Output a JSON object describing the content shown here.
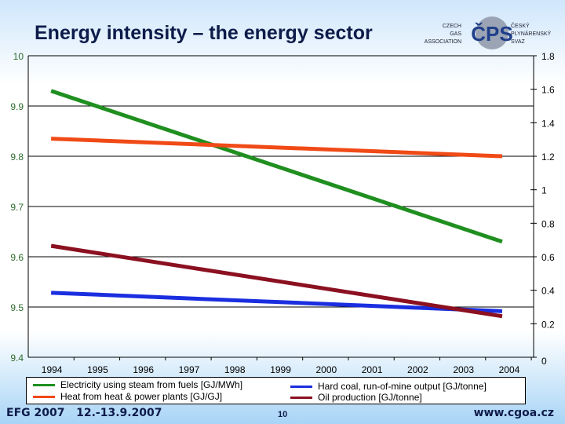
{
  "title": "Energy intensity – the energy sector",
  "logo": {
    "left_text": [
      "CZECH",
      "GAS",
      "ASSOCIATION"
    ],
    "mark": "ČPS",
    "right_text": [
      "ČESKÝ",
      "PLYNÁRENSKÝ",
      "SVAZ"
    ]
  },
  "footer": {
    "event": "EFG 2007",
    "date": "12.-13.9.2007",
    "page": "10",
    "url": "www.cgoa.cz"
  },
  "chart_data": {
    "type": "line",
    "title": "Energy intensity – the energy sector",
    "categories": [
      "1994",
      "1995",
      "1996",
      "1997",
      "1998",
      "1999",
      "2000",
      "2001",
      "2002",
      "2003",
      "2004"
    ],
    "y_left": {
      "range": [
        9.4,
        10
      ],
      "ticks": [
        "9.4",
        "9.5",
        "9.6",
        "9.7",
        "9.8",
        "9.9",
        "10"
      ]
    },
    "y_right": {
      "range": [
        0,
        1.8
      ],
      "ticks": [
        "0",
        "0.2",
        "0.4",
        "0.6",
        "0.8",
        "1",
        "1.2",
        "1.4",
        "1.6",
        "1.8"
      ]
    },
    "grid": true,
    "legend_position": "bottom",
    "series": [
      {
        "name": "Electricity using steam from fuels [GJ/MWh]",
        "axis": "left",
        "color": "#1f8f1f",
        "start": 9.93,
        "end": 9.63
      },
      {
        "name": "Heat from heat & power plants [GJ/GJ]",
        "axis": "right",
        "color": "#f04a16",
        "start": 1.305,
        "end": 1.2
      },
      {
        "name": "Hard coal, run-of-mine output [GJ/tonne]",
        "axis": "right",
        "color": "#1a2ee0",
        "start": 0.385,
        "end": 0.275
      },
      {
        "name": "Oil production [GJ/tonne]",
        "axis": "right",
        "color": "#8b1020",
        "start": 0.665,
        "end": 0.245
      }
    ]
  }
}
